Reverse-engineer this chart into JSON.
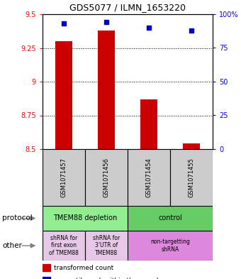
{
  "title": "GDS5077 / ILMN_1653220",
  "samples": [
    "GSM1071457",
    "GSM1071456",
    "GSM1071454",
    "GSM1071455"
  ],
  "red_values": [
    9.3,
    9.38,
    8.87,
    8.54
  ],
  "blue_values": [
    93,
    94,
    90,
    88
  ],
  "ylim_left": [
    8.5,
    9.5
  ],
  "ylim_right": [
    0,
    100
  ],
  "yticks_left": [
    8.5,
    8.75,
    9.0,
    9.25,
    9.5
  ],
  "yticks_right": [
    0,
    25,
    50,
    75,
    100
  ],
  "ytick_labels_left": [
    "8.5",
    "8.75",
    "9",
    "9.25",
    "9.5"
  ],
  "ytick_labels_right": [
    "0",
    "25",
    "50",
    "75",
    "100%"
  ],
  "protocol_data": [
    [
      0,
      2,
      "TMEM88 depletion",
      "#90EE90"
    ],
    [
      2,
      4,
      "control",
      "#66CC66"
    ]
  ],
  "other_data": [
    [
      0,
      1,
      "shRNA for\nfirst exon\nof TMEM88",
      "#E8C8E8"
    ],
    [
      1,
      2,
      "shRNA for\n3'UTR of\nTMEM88",
      "#E8C8E8"
    ],
    [
      2,
      4,
      "non-targetting\nshRNA",
      "#DD88DD"
    ]
  ],
  "bar_color": "#CC0000",
  "dot_color": "#0000CC",
  "bg_color": "#CCCCCC",
  "bar_width": 0.4,
  "figsize": [
    3.4,
    3.93
  ],
  "dpi": 100
}
